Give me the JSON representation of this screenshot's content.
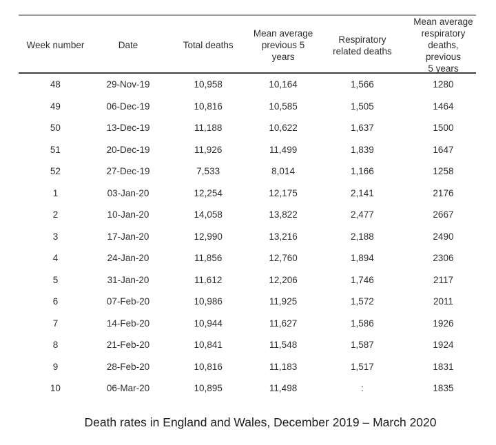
{
  "chart_data": {
    "type": "table",
    "title": "Death rates in England and Wales, December 2019 – March 2020",
    "columns": [
      "Week number",
      "Date",
      "Total deaths",
      "Mean average previous 5 years",
      "Respiratory related deaths",
      "Mean average respiratory deaths, previous 5 years"
    ],
    "header_labels": [
      "Week number",
      "Date",
      "Total deaths",
      "Mean average\nprevious 5 years",
      "Respiratory\nrelated deaths",
      "Mean average\nrespiratory\ndeaths, previous\n5 years"
    ],
    "rows": [
      [
        "48",
        "29-Nov-19",
        "10,958",
        "10,164",
        "1,566",
        "1280"
      ],
      [
        "49",
        "06-Dec-19",
        "10,816",
        "10,585",
        "1,505",
        "1464"
      ],
      [
        "50",
        "13-Dec-19",
        "11,188",
        "10,622",
        "1,637",
        "1500"
      ],
      [
        "51",
        "20-Dec-19",
        "11,926",
        "11,499",
        "1,839",
        "1647"
      ],
      [
        "52",
        "27-Dec-19",
        "7,533",
        "8,014",
        "1,166",
        "1258"
      ],
      [
        "1",
        "03-Jan-20",
        "12,254",
        "12,175",
        "2,141",
        "2176"
      ],
      [
        "2",
        "10-Jan-20",
        "14,058",
        "13,822",
        "2,477",
        "2667"
      ],
      [
        "3",
        "17-Jan-20",
        "12,990",
        "13,216",
        "2,188",
        "2490"
      ],
      [
        "4",
        "24-Jan-20",
        "11,856",
        "12,760",
        "1,894",
        "2306"
      ],
      [
        "5",
        "31-Jan-20",
        "11,612",
        "12,206",
        "1,746",
        "2117"
      ],
      [
        "6",
        "07-Feb-20",
        "10,986",
        "11,925",
        "1,572",
        "2011"
      ],
      [
        "7",
        "14-Feb-20",
        "10,944",
        "11,627",
        "1,586",
        "1926"
      ],
      [
        "8",
        "21-Feb-20",
        "10,841",
        "11,548",
        "1,587",
        "1924"
      ],
      [
        "9",
        "28-Feb-20",
        "10,816",
        "11,183",
        "1,517",
        "1831"
      ],
      [
        "10",
        "06-Mar-20",
        "10,895",
        "11,498",
        ":",
        "1835"
      ]
    ],
    "missing_value_symbol": ":",
    "layout": {
      "grid": "off",
      "rules": [
        "top",
        "below-header"
      ],
      "caption_position": "bottom-center"
    }
  },
  "colors": {
    "background": "#ffffff",
    "text": "#2e2e2e",
    "caption_text": "#1c1c1c",
    "rule_top": "#9c9c9c",
    "rule_header": "#3f3f3f"
  }
}
